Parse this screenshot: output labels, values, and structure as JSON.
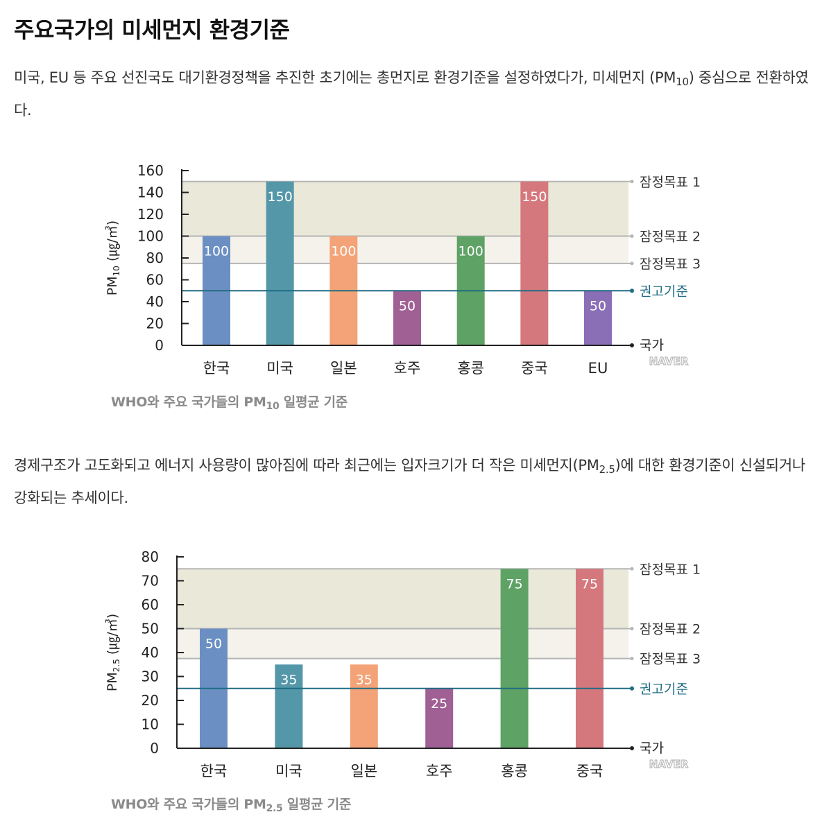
{
  "page": {
    "heading": "주요국가의 미세먼지 환경기준",
    "para1": {
      "before": "미국, EU 등 주요 선진국도 대기환경정책을 추진한 초기에는 총먼지로 환경기준을 설정하였다가, 미세먼지 (PM",
      "sub": "10",
      "after": ") 중심으로 전환하였다."
    },
    "para2": {
      "before": "경제구조가 고도화되고 에너지 사용량이 많아짐에 따라 최근에는 입자크기가 더 작은 미세먼지(PM",
      "sub": "2.5",
      "after": ")에 대한 환경기준이 신설되거나 강화되는 추세이다."
    },
    "caption1": {
      "before": "WHO와 주요 국가들의 PM",
      "sub": "10",
      "after": " 일평균 기준"
    },
    "caption2": {
      "before": "WHO와 주요 국가들의 PM",
      "sub": "2.5",
      "after": " 일평균 기준"
    },
    "watermark": "NAVER"
  },
  "chart_data": [
    {
      "type": "bar",
      "ylabel": "PM10 (㎍/㎥)",
      "ylabel_main": "PM",
      "ylabel_sub": "10",
      "ylabel_unit": " (㎍/㎥)",
      "xlabel": "국가",
      "ylim": [
        0,
        160
      ],
      "yticks": [
        0,
        20,
        40,
        60,
        80,
        100,
        120,
        140,
        160
      ],
      "categories": [
        "한국",
        "미국",
        "일본",
        "호주",
        "홍콩",
        "중국",
        "EU"
      ],
      "values": [
        100,
        150,
        100,
        50,
        100,
        150,
        50
      ],
      "colors": [
        "#6b8fc3",
        "#5497a8",
        "#f3a377",
        "#a06094",
        "#5ea265",
        "#d5787e",
        "#8a6eb6"
      ],
      "reference_lines": [
        {
          "label": "잠정목표 1",
          "value": 150,
          "color": "#b5b5b5",
          "label_color": "#333333"
        },
        {
          "label": "잠정목표 2",
          "value": 100,
          "color": "#b5b5b5",
          "label_color": "#333333"
        },
        {
          "label": "잠정목표 3",
          "value": 75,
          "color": "#b5b5b5",
          "label_color": "#333333"
        },
        {
          "label": "권고기준",
          "value": 50,
          "color": "#1f6c84",
          "label_color": "#1f6c84"
        }
      ],
      "bands": [
        {
          "from": 100,
          "to": 150,
          "color": "#e9e8d9"
        },
        {
          "from": 75,
          "to": 100,
          "color": "#f4f2eb"
        }
      ],
      "grid": false
    },
    {
      "type": "bar",
      "ylabel": "PM2.5 (㎍/㎥)",
      "ylabel_main": "PM",
      "ylabel_sub": "2.5",
      "ylabel_unit": " (㎍/㎥)",
      "xlabel": "국가",
      "ylim": [
        0,
        80
      ],
      "yticks": [
        0,
        10,
        20,
        30,
        40,
        50,
        60,
        70,
        80
      ],
      "categories": [
        "한국",
        "미국",
        "일본",
        "호주",
        "홍콩",
        "중국"
      ],
      "values": [
        50,
        35,
        35,
        25,
        75,
        75
      ],
      "colors": [
        "#6b8fc3",
        "#5497a8",
        "#f3a377",
        "#a06094",
        "#5ea265",
        "#d5787e"
      ],
      "reference_lines": [
        {
          "label": "잠정목표 1",
          "value": 75,
          "color": "#b5b5b5",
          "label_color": "#333333"
        },
        {
          "label": "잠정목표 2",
          "value": 50,
          "color": "#b5b5b5",
          "label_color": "#333333"
        },
        {
          "label": "잠정목표 3",
          "value": 37.5,
          "color": "#b5b5b5",
          "label_color": "#333333"
        },
        {
          "label": "권고기준",
          "value": 25,
          "color": "#1f6c84",
          "label_color": "#1f6c84"
        }
      ],
      "bands": [
        {
          "from": 50,
          "to": 75,
          "color": "#e9e8d9"
        },
        {
          "from": 37.5,
          "to": 50,
          "color": "#f4f2eb"
        }
      ],
      "grid": false
    }
  ]
}
